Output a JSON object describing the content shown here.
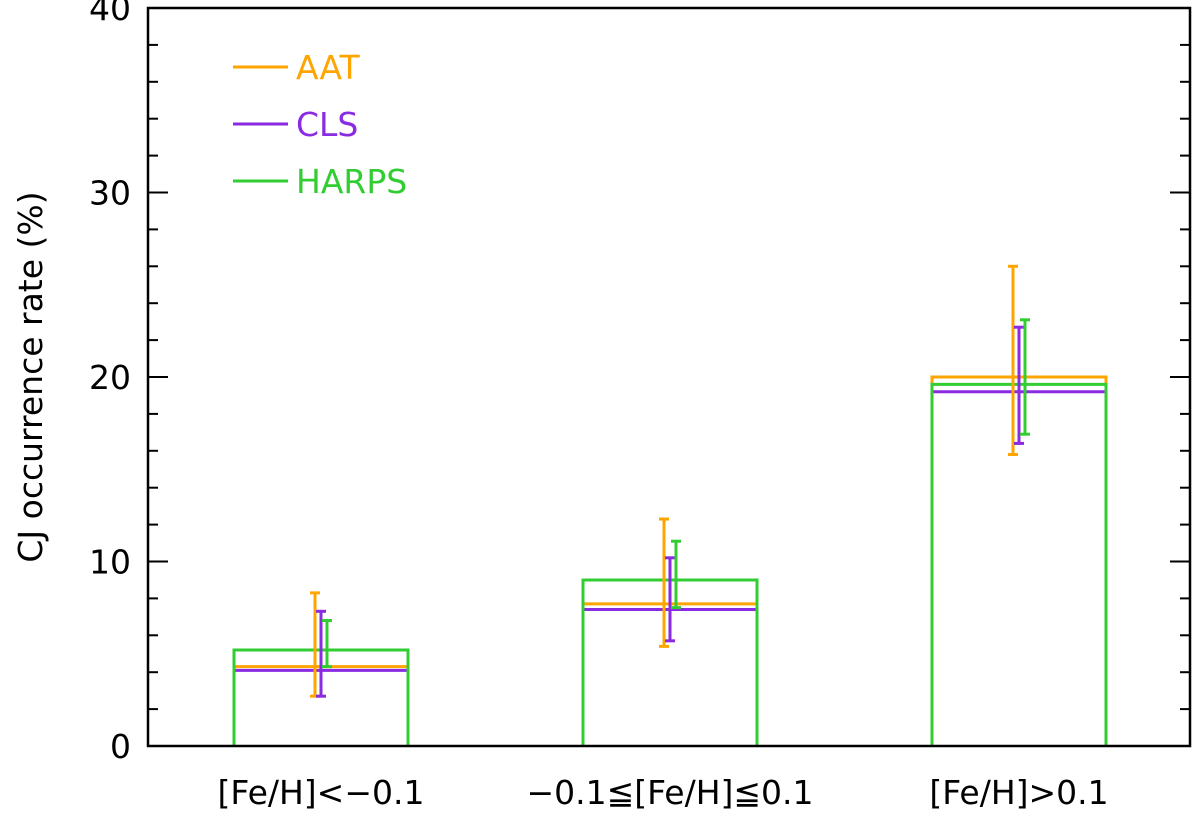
{
  "chart_data": {
    "type": "bar",
    "title": "",
    "xlabel": "",
    "ylabel": "CJ occurrence rate (%)",
    "ylim": [
      0,
      40
    ],
    "yticks": [
      0,
      10,
      20,
      30,
      40
    ],
    "ytick_labels": [
      "0",
      "10",
      "20",
      "30",
      "40"
    ],
    "categories": [
      "[Fe/H]<−0.1",
      "−0.1≦[Fe/H]≦0.1",
      "[Fe/H]>0.1"
    ],
    "grid": false,
    "legend_position": "top-left",
    "series": [
      {
        "name": "AAT",
        "color": "#FFA500",
        "values": [
          4.3,
          7.7,
          20.0
        ],
        "err_low": [
          2.7,
          5.4,
          15.8
        ],
        "err_high": [
          8.3,
          12.3,
          26.0
        ]
      },
      {
        "name": "CLS",
        "color": "#8A2BE2",
        "values": [
          4.1,
          7.4,
          19.2
        ],
        "err_low": [
          2.7,
          5.7,
          16.4
        ],
        "err_high": [
          7.3,
          10.2,
          22.7
        ]
      },
      {
        "name": "HARPS",
        "color": "#32CD32",
        "values": [
          5.2,
          9.0,
          19.6
        ],
        "err_low": [
          4.3,
          7.5,
          16.9
        ],
        "err_high": [
          6.8,
          11.1,
          23.1
        ]
      }
    ]
  }
}
